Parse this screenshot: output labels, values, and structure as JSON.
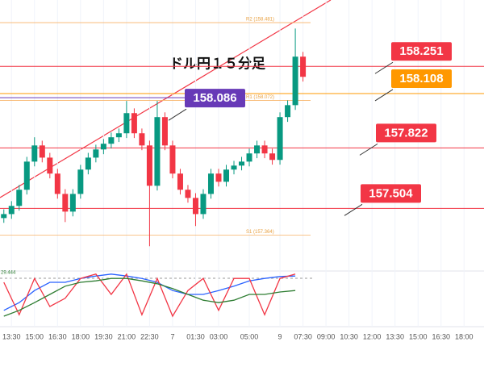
{
  "chart_data": {
    "type": "candlestick",
    "title": "ドル円１５分足",
    "xlim": [
      -0.5,
      62.6
    ],
    "ylim": [
      157.2,
      158.6
    ],
    "xticks": [
      {
        "value": 1,
        "label": "13:30"
      },
      {
        "value": 4,
        "label": "15:00"
      },
      {
        "value": 7,
        "label": "16:30"
      },
      {
        "value": 10,
        "label": "18:00"
      },
      {
        "value": 13,
        "label": "19:30"
      },
      {
        "value": 16,
        "label": "21:00"
      },
      {
        "value": 19,
        "label": "22:30"
      },
      {
        "value": 22,
        "label": "7"
      },
      {
        "value": 25,
        "label": "01:30"
      },
      {
        "value": 28,
        "label": "03:00"
      },
      {
        "value": 32,
        "label": "05:00"
      },
      {
        "value": 36,
        "label": "9"
      },
      {
        "value": 39,
        "label": "07:30"
      },
      {
        "value": 42,
        "label": "09:00"
      },
      {
        "value": 45,
        "label": "10:30"
      },
      {
        "value": 48,
        "label": "12:00"
      },
      {
        "value": 51,
        "label": "13:30"
      },
      {
        "value": 54,
        "label": "15:00"
      },
      {
        "value": 57,
        "label": "16:30"
      },
      {
        "value": 60,
        "label": "18:00"
      }
    ],
    "up_color": "#089981",
    "down_color": "#f23645",
    "grid": true,
    "open": [
      157.453,
      157.474,
      157.517,
      157.602,
      157.75,
      157.835,
      157.771,
      157.687,
      157.58,
      157.487,
      157.58,
      157.708,
      157.771,
      157.814,
      157.844,
      157.878,
      157.899,
      158.005,
      157.899,
      157.835,
      157.623,
      157.984,
      157.835,
      157.687,
      157.602,
      157.559,
      157.474,
      157.58,
      157.687,
      157.644,
      157.708,
      157.729,
      157.75,
      157.793,
      157.835,
      157.793,
      157.759,
      157.984,
      158.047,
      158.302
    ],
    "high": [
      157.499,
      157.542,
      157.627,
      157.775,
      157.878,
      157.86,
      157.796,
      157.712,
      157.605,
      157.605,
      157.733,
      157.796,
      157.839,
      157.869,
      157.903,
      157.924,
      158.069,
      158.03,
      157.924,
      157.86,
      158.069,
      158.009,
      157.86,
      157.712,
      157.627,
      157.584,
      157.605,
      157.712,
      157.712,
      157.733,
      157.754,
      157.775,
      157.818,
      157.86,
      157.86,
      157.818,
      158.009,
      158.072,
      158.45,
      158.327
    ],
    "low": [
      157.428,
      157.449,
      157.492,
      157.577,
      157.725,
      157.746,
      157.662,
      157.555,
      157.432,
      157.462,
      157.555,
      157.683,
      157.746,
      157.789,
      157.819,
      157.853,
      157.874,
      157.874,
      157.81,
      157.305,
      157.598,
      157.81,
      157.662,
      157.577,
      157.534,
      157.411,
      157.449,
      157.555,
      157.619,
      157.619,
      157.683,
      157.704,
      157.725,
      157.768,
      157.768,
      157.734,
      157.734,
      157.959,
      158.022,
      158.171
    ],
    "close": [
      157.474,
      157.517,
      157.602,
      157.75,
      157.835,
      157.771,
      157.687,
      157.58,
      157.487,
      157.58,
      157.708,
      157.771,
      157.814,
      157.844,
      157.878,
      157.899,
      158.005,
      157.899,
      157.835,
      157.623,
      157.984,
      157.835,
      157.687,
      157.602,
      157.559,
      157.474,
      157.58,
      157.687,
      157.644,
      157.708,
      157.729,
      157.75,
      157.793,
      157.835,
      157.793,
      157.759,
      157.984,
      158.047,
      158.302,
      158.196
    ],
    "levels": [
      {
        "value": 158.251,
        "color": "#f23645"
      },
      {
        "value": 158.108,
        "color": "#ff9800"
      },
      {
        "value": 157.822,
        "color": "#f23645"
      },
      {
        "value": 157.504,
        "color": "#f23645"
      },
      {
        "value": 158.086,
        "color": "#673ab7"
      }
    ],
    "pivots": [
      {
        "value": 158.481,
        "label": "R2 (158.481)"
      },
      {
        "value": 158.072,
        "label": "R1 (158.072)"
      },
      {
        "value": 157.364,
        "label": "S1 (157.364)"
      }
    ],
    "oscillator": {
      "label": "29.444",
      "ylim": [
        0,
        100
      ],
      "x": [
        0,
        2,
        4,
        6,
        8,
        10,
        12,
        14,
        16,
        18,
        20,
        22,
        24,
        26,
        28,
        30,
        32,
        34,
        36,
        38
      ],
      "series": [
        {
          "color": "#2962ff",
          "values": [
            22,
            38,
            63,
            80,
            80,
            88,
            93,
            97,
            93,
            88,
            80,
            63,
            55,
            55,
            63,
            72,
            83,
            88,
            92,
            93
          ]
        },
        {
          "color": "#f23645",
          "values": [
            80,
            13,
            88,
            30,
            47,
            88,
            97,
            55,
            97,
            13,
            88,
            10,
            63,
            88,
            22,
            88,
            88,
            13,
            88,
            97
          ]
        },
        {
          "color": "#2e7d32",
          "values": [
            10,
            22,
            38,
            55,
            72,
            80,
            83,
            88,
            88,
            83,
            77,
            67,
            55,
            43,
            38,
            43,
            55,
            55,
            60,
            63
          ]
        }
      ]
    }
  }
}
